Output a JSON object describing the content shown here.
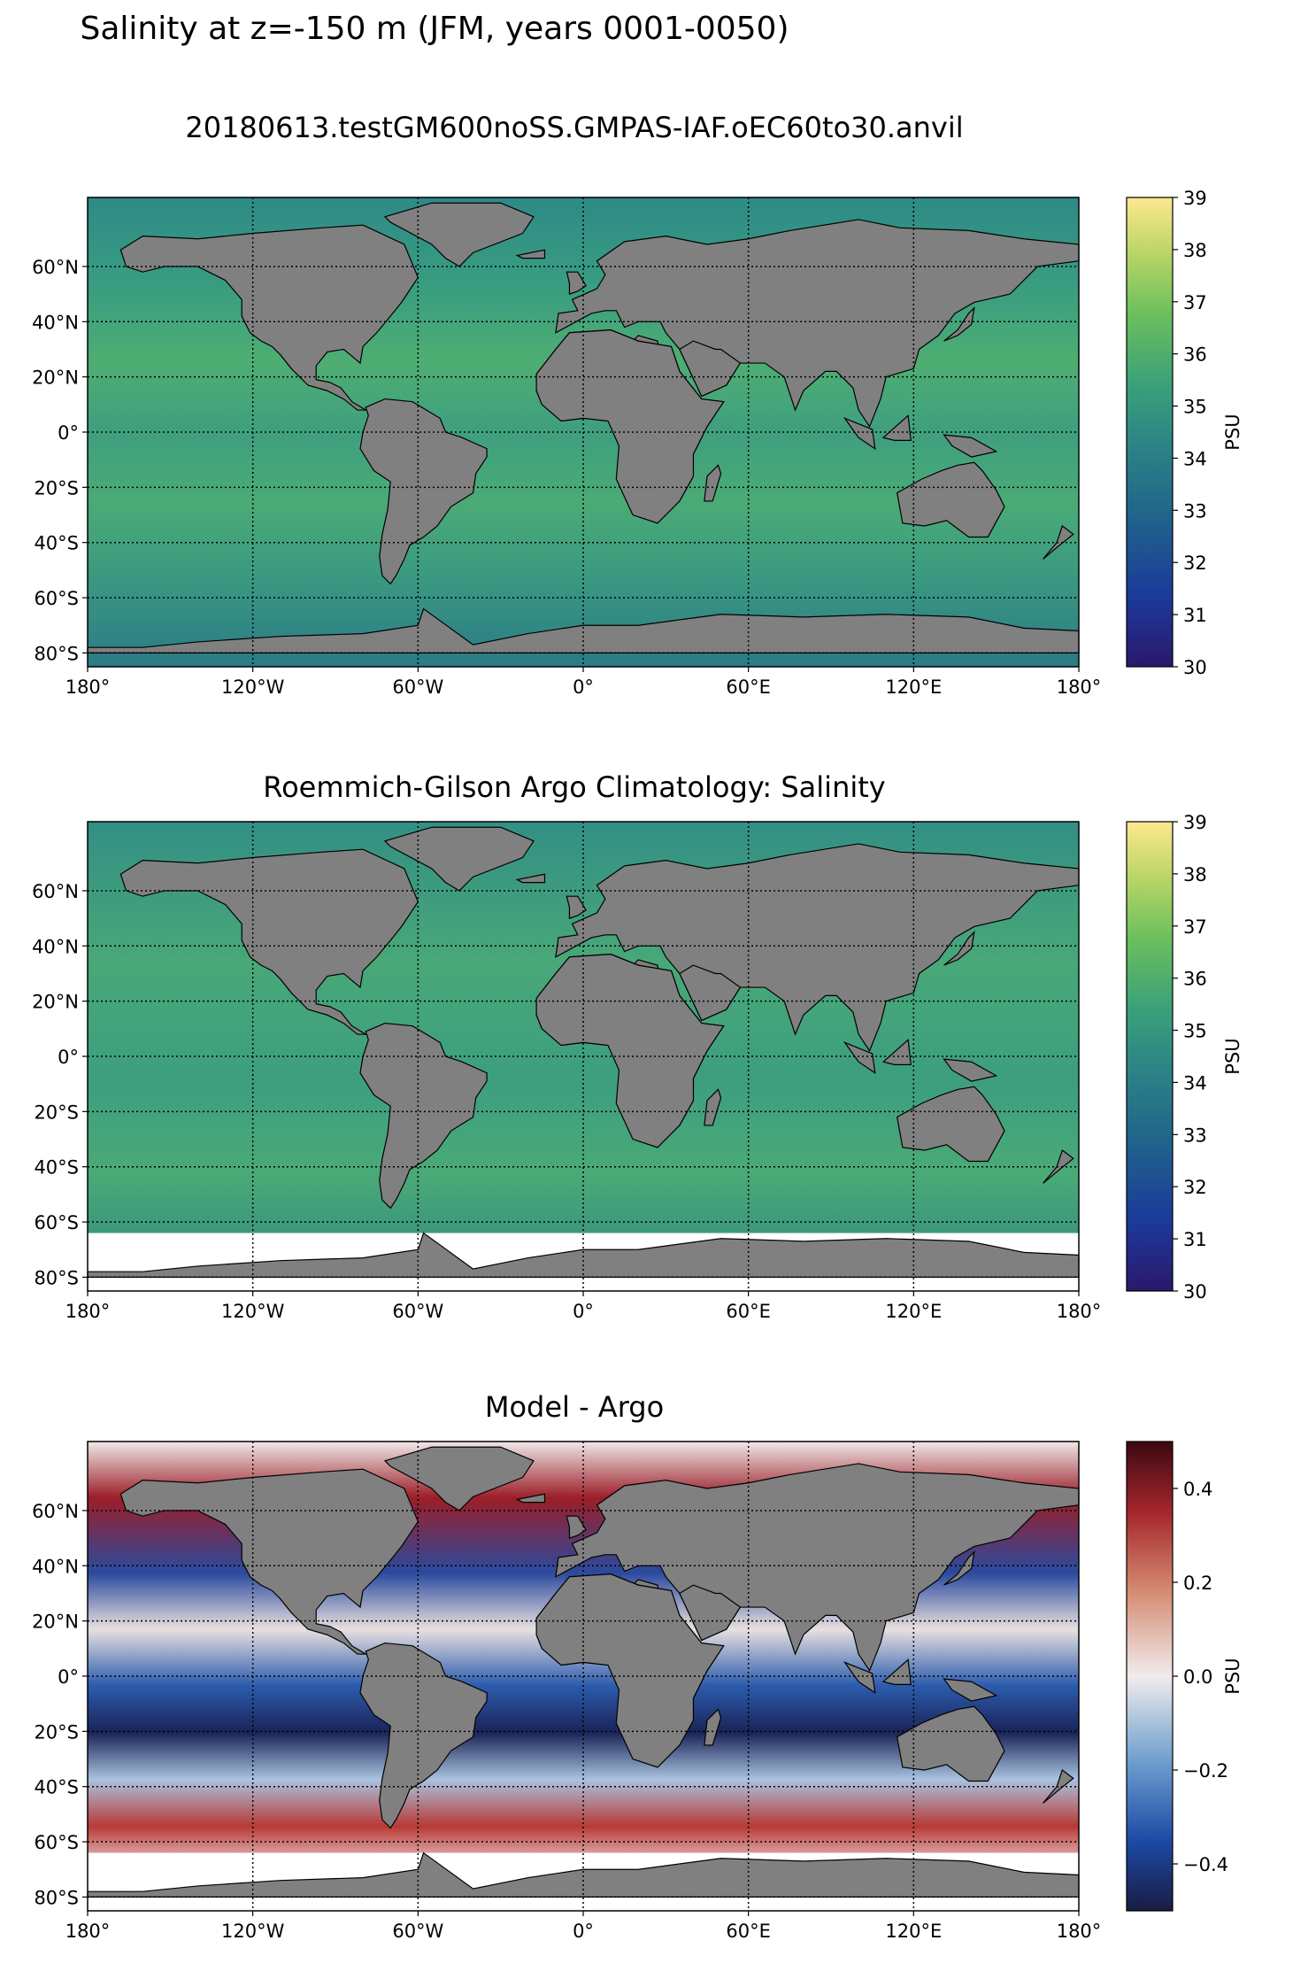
{
  "figure": {
    "suptitle": "Salinity at z=-150 m (JFM, years 0001-0050)"
  },
  "panels": [
    {
      "title": "20180613.testGM600noSS.GMPAS-IAF.oEC60to30.anvil",
      "colorbar": {
        "label": "PSU",
        "ticks": [
          "30",
          "31",
          "32",
          "33",
          "34",
          "35",
          "36",
          "37",
          "38",
          "39"
        ],
        "range": [
          30,
          39
        ],
        "colormap": "haline"
      }
    },
    {
      "title": "Roemmich-Gilson Argo Climatology: Salinity",
      "colorbar": {
        "label": "PSU",
        "ticks": [
          "30",
          "31",
          "32",
          "33",
          "34",
          "35",
          "36",
          "37",
          "38",
          "39"
        ],
        "range": [
          30,
          39
        ],
        "colormap": "haline"
      }
    },
    {
      "title": "Model - Argo",
      "colorbar": {
        "label": "PSU",
        "ticks": [
          "0.4",
          "0.2",
          "0.0",
          "−0.2",
          "−0.4"
        ],
        "range": [
          -0.5,
          0.5
        ],
        "colormap": "balance"
      }
    }
  ],
  "axes": {
    "lon_ticks": [
      "180°",
      "120°W",
      "60°W",
      "0°",
      "60°E",
      "120°E",
      "180°"
    ],
    "lat_ticks": [
      "60°N",
      "40°N",
      "20°N",
      "0°",
      "20°S",
      "40°S",
      "60°S",
      "80°S"
    ],
    "grid": true,
    "projection": "PlateCarree"
  },
  "colors": {
    "land": "#808080",
    "missing": "#ffffff"
  }
}
